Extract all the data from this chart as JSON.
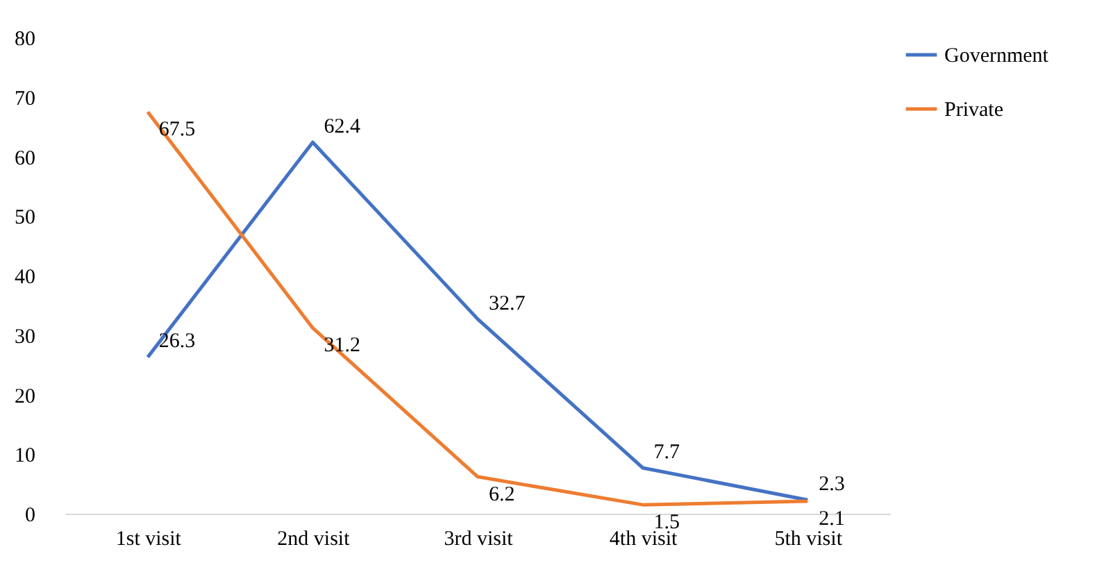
{
  "chart_data": {
    "type": "line",
    "categories": [
      "1st visit",
      "2nd visit",
      "3rd visit",
      "4th visit",
      "5th visit"
    ],
    "series": [
      {
        "name": "Government",
        "color": "#4472c4",
        "values": [
          26.3,
          62.4,
          32.7,
          7.7,
          2.3
        ]
      },
      {
        "name": "Private",
        "color": "#ed7d31",
        "values": [
          67.5,
          31.2,
          6.2,
          1.5,
          2.1
        ]
      }
    ],
    "ylim": [
      0,
      80
    ],
    "yticks": [
      0,
      10,
      20,
      30,
      40,
      50,
      60,
      70,
      80
    ],
    "grid": false,
    "legend": "right",
    "data_labels": true,
    "marker": "none",
    "line_style": "solid"
  }
}
